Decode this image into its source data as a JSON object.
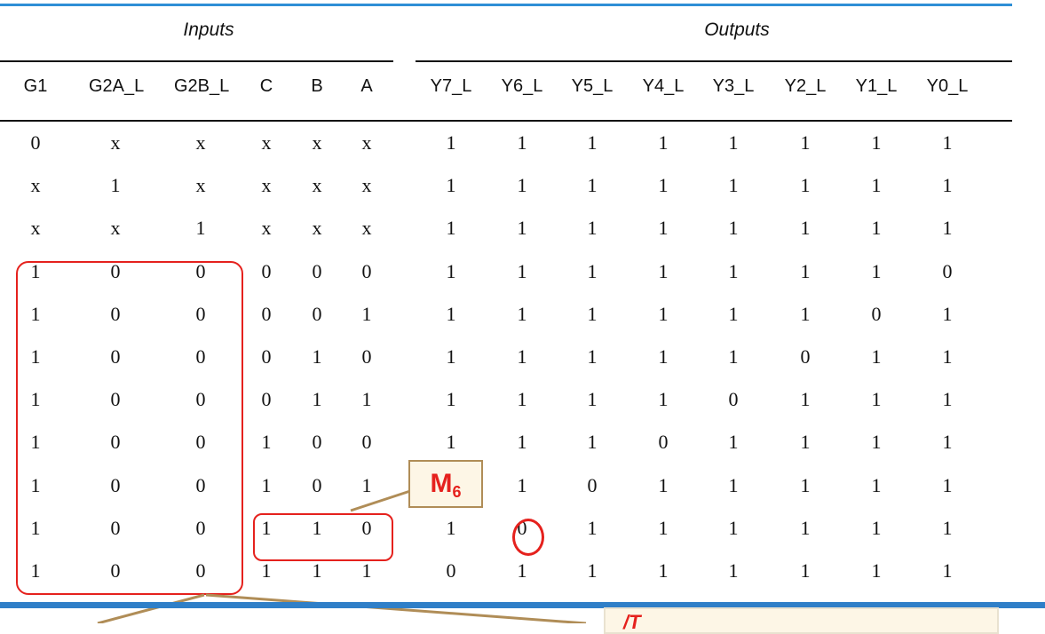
{
  "table": {
    "group_headers": {
      "inputs": "Inputs",
      "outputs": "Outputs"
    },
    "columns": [
      "G1",
      "G2A_L",
      "G2B_L",
      "C",
      "B",
      "A",
      "Y7_L",
      "Y6_L",
      "Y5_L",
      "Y4_L",
      "Y3_L",
      "Y2_L",
      "Y1_L",
      "Y0_L"
    ],
    "rows": [
      [
        "0",
        "x",
        "x",
        "x",
        "x",
        "x",
        "1",
        "1",
        "1",
        "1",
        "1",
        "1",
        "1",
        "1"
      ],
      [
        "x",
        "1",
        "x",
        "x",
        "x",
        "x",
        "1",
        "1",
        "1",
        "1",
        "1",
        "1",
        "1",
        "1"
      ],
      [
        "x",
        "x",
        "1",
        "x",
        "x",
        "x",
        "1",
        "1",
        "1",
        "1",
        "1",
        "1",
        "1",
        "1"
      ],
      [
        "1",
        "0",
        "0",
        "0",
        "0",
        "0",
        "1",
        "1",
        "1",
        "1",
        "1",
        "1",
        "1",
        "0"
      ],
      [
        "1",
        "0",
        "0",
        "0",
        "0",
        "1",
        "1",
        "1",
        "1",
        "1",
        "1",
        "1",
        "0",
        "1"
      ],
      [
        "1",
        "0",
        "0",
        "0",
        "1",
        "0",
        "1",
        "1",
        "1",
        "1",
        "1",
        "0",
        "1",
        "1"
      ],
      [
        "1",
        "0",
        "0",
        "0",
        "1",
        "1",
        "1",
        "1",
        "1",
        "1",
        "0",
        "1",
        "1",
        "1"
      ],
      [
        "1",
        "0",
        "0",
        "1",
        "0",
        "0",
        "1",
        "1",
        "1",
        "0",
        "1",
        "1",
        "1",
        "1"
      ],
      [
        "1",
        "0",
        "0",
        "1",
        "0",
        "1",
        "1",
        "1",
        "0",
        "1",
        "1",
        "1",
        "1",
        "1"
      ],
      [
        "1",
        "0",
        "0",
        "1",
        "1",
        "0",
        "1",
        "0",
        "1",
        "1",
        "1",
        "1",
        "1",
        "1"
      ],
      [
        "1",
        "0",
        "0",
        "1",
        "1",
        "1",
        "0",
        "1",
        "1",
        "1",
        "1",
        "1",
        "1",
        "1"
      ]
    ]
  },
  "callout": {
    "label": "M",
    "subscript": "6"
  },
  "note": {
    "text": "/T"
  },
  "colors": {
    "highlight": "#e5211d",
    "accent_rule": "#2e8fd6",
    "callout_border": "#b08d57"
  }
}
